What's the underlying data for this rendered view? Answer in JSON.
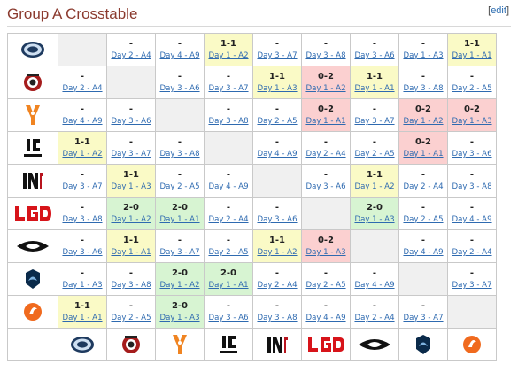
{
  "heading": "Group A Crosstable",
  "edit_open": "[",
  "edit_label": "edit",
  "edit_close": "]",
  "teams": [
    {
      "name": "Evil Geniuses",
      "icon": "evil-geniuses-logo"
    },
    {
      "name": "Team Empire",
      "icon": "empire-logo"
    },
    {
      "name": "Fnatic",
      "icon": "fnatic-logo"
    },
    {
      "name": "Invictus Gaming",
      "icon": "ig-logo"
    },
    {
      "name": "Infamous",
      "icon": "infamous-logo"
    },
    {
      "name": "LGD",
      "icon": "lgd-logo"
    },
    {
      "name": "Team Secret",
      "icon": "secret-logo"
    },
    {
      "name": "Team Liquid",
      "icon": "liquid-logo"
    },
    {
      "name": "Team Elements",
      "icon": "orange-logo"
    }
  ],
  "rows": [
    [
      {
        "self": true
      },
      {
        "score": "-",
        "day": "Day 2 - A4"
      },
      {
        "score": "-",
        "day": "Day 4 - A9"
      },
      {
        "score": "1-1",
        "day": "Day 1 - A2",
        "result": "draw"
      },
      {
        "score": "-",
        "day": "Day 3 - A7"
      },
      {
        "score": "-",
        "day": "Day 3 - A8"
      },
      {
        "score": "-",
        "day": "Day 3 - A6"
      },
      {
        "score": "-",
        "day": "Day 1 - A3"
      },
      {
        "score": "1-1",
        "day": "Day 1 - A1",
        "result": "draw"
      }
    ],
    [
      {
        "score": "-",
        "day": "Day 2 - A4"
      },
      {
        "self": true
      },
      {
        "score": "-",
        "day": "Day 3 - A6"
      },
      {
        "score": "-",
        "day": "Day 3 - A7"
      },
      {
        "score": "1-1",
        "day": "Day 1 - A3",
        "result": "draw"
      },
      {
        "score": "0-2",
        "day": "Day 1 - A2",
        "result": "loss"
      },
      {
        "score": "1-1",
        "day": "Day 1 - A1",
        "result": "draw"
      },
      {
        "score": "-",
        "day": "Day 3 - A8"
      },
      {
        "score": "-",
        "day": "Day 2 - A5"
      }
    ],
    [
      {
        "score": "-",
        "day": "Day 4 - A9"
      },
      {
        "score": "-",
        "day": "Day 3 - A6"
      },
      {
        "self": true
      },
      {
        "score": "-",
        "day": "Day 3 - A8"
      },
      {
        "score": "-",
        "day": "Day 2 - A5"
      },
      {
        "score": "0-2",
        "day": "Day 1 - A1",
        "result": "loss"
      },
      {
        "score": "-",
        "day": "Day 3 - A7"
      },
      {
        "score": "0-2",
        "day": "Day 1 - A2",
        "result": "loss"
      },
      {
        "score": "0-2",
        "day": "Day 1 - A3",
        "result": "loss"
      }
    ],
    [
      {
        "score": "1-1",
        "day": "Day 1 - A2",
        "result": "draw"
      },
      {
        "score": "-",
        "day": "Day 3 - A7"
      },
      {
        "score": "-",
        "day": "Day 3 - A8"
      },
      {
        "self": true
      },
      {
        "score": "-",
        "day": "Day 4 - A9"
      },
      {
        "score": "-",
        "day": "Day 2 - A4"
      },
      {
        "score": "-",
        "day": "Day 2 - A5"
      },
      {
        "score": "0-2",
        "day": "Day 1 - A1",
        "result": "loss"
      },
      {
        "score": "-",
        "day": "Day 3 - A6"
      }
    ],
    [
      {
        "score": "-",
        "day": "Day 3 - A7"
      },
      {
        "score": "1-1",
        "day": "Day 1 - A3",
        "result": "draw"
      },
      {
        "score": "-",
        "day": "Day 2 - A5"
      },
      {
        "score": "-",
        "day": "Day 4 - A9"
      },
      {
        "self": true
      },
      {
        "score": "-",
        "day": "Day 3 - A6"
      },
      {
        "score": "1-1",
        "day": "Day 1 - A2",
        "result": "draw"
      },
      {
        "score": "-",
        "day": "Day 2 - A4"
      },
      {
        "score": "-",
        "day": "Day 3 - A8"
      }
    ],
    [
      {
        "score": "-",
        "day": "Day 3 - A8"
      },
      {
        "score": "2-0",
        "day": "Day 1 - A2",
        "result": "win"
      },
      {
        "score": "2-0",
        "day": "Day 1 - A1",
        "result": "win"
      },
      {
        "score": "-",
        "day": "Day 2 - A4"
      },
      {
        "score": "-",
        "day": "Day 3 - A6"
      },
      {
        "self": true
      },
      {
        "score": "2-0",
        "day": "Day 1 - A3",
        "result": "win"
      },
      {
        "score": "-",
        "day": "Day 2 - A5"
      },
      {
        "score": "-",
        "day": "Day 4 - A9"
      }
    ],
    [
      {
        "score": "-",
        "day": "Day 3 - A6"
      },
      {
        "score": "1-1",
        "day": "Day 1 - A1",
        "result": "draw"
      },
      {
        "score": "-",
        "day": "Day 3 - A7"
      },
      {
        "score": "-",
        "day": "Day 2 - A5"
      },
      {
        "score": "1-1",
        "day": "Day 1 - A2",
        "result": "draw"
      },
      {
        "score": "0-2",
        "day": "Day 1 - A3",
        "result": "loss"
      },
      {
        "self": true
      },
      {
        "score": "-",
        "day": "Day 4 - A9"
      },
      {
        "score": "-",
        "day": "Day 2 - A4"
      }
    ],
    [
      {
        "score": "-",
        "day": "Day 1 - A3"
      },
      {
        "score": "-",
        "day": "Day 3 - A8"
      },
      {
        "score": "2-0",
        "day": "Day 1 - A2",
        "result": "win"
      },
      {
        "score": "2-0",
        "day": "Day 1 - A1",
        "result": "win"
      },
      {
        "score": "-",
        "day": "Day 2 - A4"
      },
      {
        "score": "-",
        "day": "Day 2 - A5"
      },
      {
        "score": "-",
        "day": "Day 4 - A9"
      },
      {
        "self": true
      },
      {
        "score": "-",
        "day": "Day 3 - A7"
      }
    ],
    [
      {
        "score": "1-1",
        "day": "Day 1 - A1",
        "result": "draw"
      },
      {
        "score": "-",
        "day": "Day 2 - A5"
      },
      {
        "score": "2-0",
        "day": "Day 1 - A3",
        "result": "win"
      },
      {
        "score": "-",
        "day": "Day 3 - A6"
      },
      {
        "score": "-",
        "day": "Day 3 - A8"
      },
      {
        "score": "-",
        "day": "Day 4 - A9"
      },
      {
        "score": "-",
        "day": "Day 2 - A4"
      },
      {
        "score": "-",
        "day": "Day 3 - A7"
      },
      {
        "self": true
      }
    ]
  ],
  "colors": {
    "heading": "#8b3a2e",
    "link": "#2e6ab0",
    "draw": "#fafac6",
    "loss": "#fbd0d0",
    "win": "#d7f4d2",
    "self": "#f0f0f0"
  }
}
